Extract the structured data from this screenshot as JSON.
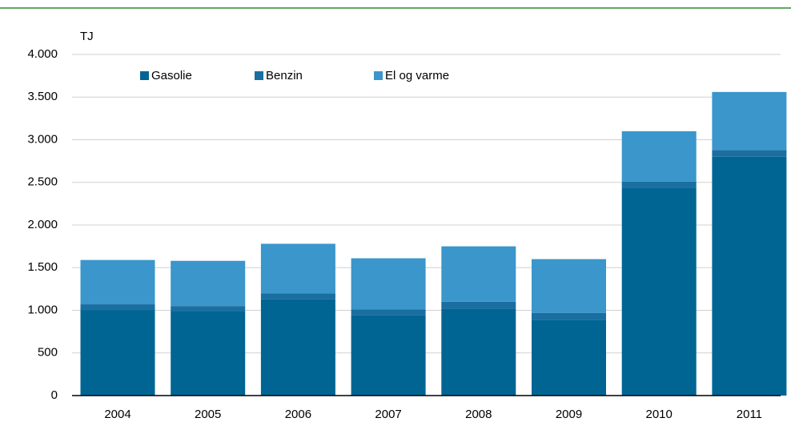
{
  "chart_data": {
    "type": "stacked_bar",
    "y_unit": "TJ",
    "categories": [
      "2004",
      "2005",
      "2006",
      "2007",
      "2008",
      "2009",
      "2010",
      "2011"
    ],
    "series": [
      {
        "name": "Gasolie",
        "color": "#006593",
        "values": [
          1000,
          990,
          1130,
          940,
          1020,
          890,
          2440,
          2800
        ]
      },
      {
        "name": "Benzin",
        "color": "#1a6ea0",
        "values": [
          70,
          60,
          70,
          70,
          80,
          80,
          70,
          80
        ]
      },
      {
        "name": "El og varme",
        "color": "#3a96cb",
        "values": [
          520,
          530,
          580,
          600,
          650,
          630,
          590,
          680
        ]
      }
    ],
    "ylim": [
      0,
      4000
    ],
    "yticks": [
      0,
      500,
      {
        "value": 1000,
        "label": "1.000"
      },
      {
        "value": 1500,
        "label": "1.500"
      },
      {
        "value": 2000,
        "label": "2.000"
      },
      {
        "value": 2500,
        "label": "2.500"
      },
      {
        "value": 3000,
        "label": "3.000"
      },
      {
        "value": 3500,
        "label": "3.500"
      },
      {
        "value": 4000,
        "label": "4.000"
      }
    ],
    "grid": true
  }
}
